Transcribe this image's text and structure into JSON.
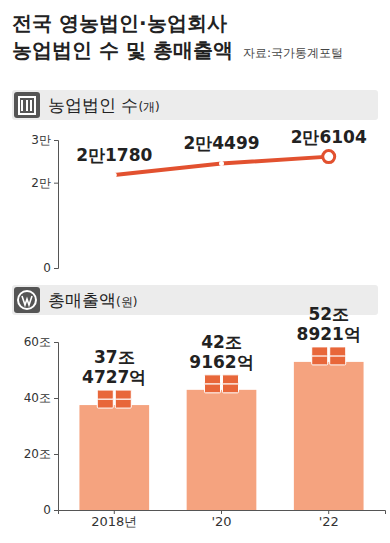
{
  "title": "전국 영농법인·농업회사 농업법인 수 및 총매출액",
  "source": "자료:국가통계포털",
  "chart_data": [
    {
      "type": "line",
      "title": "농업법인 수",
      "ylabel": "(개)",
      "categories": [
        null,
        null,
        null
      ],
      "values": [
        21780,
        24499,
        26104
      ],
      "value_labels": [
        "2만1780",
        "2만4499",
        "2만6104"
      ],
      "data_labels": true,
      "color": "#e2512f",
      "marker": "circle",
      "ylim": [
        0,
        30000
      ],
      "yticks": [
        0,
        {
          "value": 20000,
          "label": "2만"
        },
        {
          "value": 30000,
          "label": "3만"
        }
      ],
      "grid": false,
      "tick_labels": "y"
    },
    {
      "type": "bar",
      "title": "총매출액",
      "ylabel": "(원)",
      "categories": [
        "2018년",
        "'20",
        "'22"
      ],
      "values": [
        37.4727,
        42.9162,
        52.8921
      ],
      "value_labels": [
        "37조 4727억",
        "42조 9162억",
        "52조 8921억"
      ],
      "data_labels": true,
      "color": "#f5a37f",
      "ylim": [
        0,
        60
      ],
      "yticks": [
        0,
        {
          "value": 20,
          "label": "20조"
        },
        {
          "value": 40,
          "label": "40조"
        },
        {
          "value": 60,
          "label": "60조"
        }
      ],
      "grid": false
    }
  ]
}
